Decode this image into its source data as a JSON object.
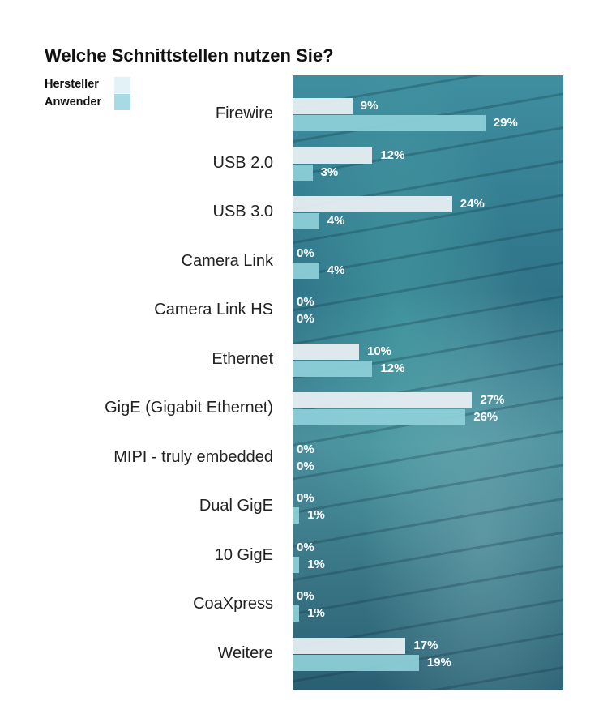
{
  "chart_data": {
    "type": "bar",
    "orientation": "horizontal",
    "title": "Welche Schnittstellen nutzen Sie?",
    "categories": [
      "Firewire",
      "USB 2.0",
      "USB 3.0",
      "Camera Link",
      "Camera Link HS",
      "Ethernet",
      "GigE (Gigabit Ethernet)",
      "MIPI - truly embedded",
      "Dual GigE",
      "10 GigE",
      "CoaXpress",
      "Weitere"
    ],
    "series": [
      {
        "name": "Hersteller",
        "color": "#e6eef1",
        "values": [
          9,
          12,
          24,
          0,
          0,
          10,
          27,
          0,
          0,
          0,
          0,
          17
        ]
      },
      {
        "name": "Anwender",
        "color": "#8fd0d9",
        "values": [
          29,
          3,
          4,
          4,
          0,
          12,
          26,
          0,
          1,
          1,
          1,
          19
        ]
      }
    ],
    "unit": "%",
    "xlim": [
      0,
      40
    ],
    "legend": "top-left",
    "grid": false
  }
}
